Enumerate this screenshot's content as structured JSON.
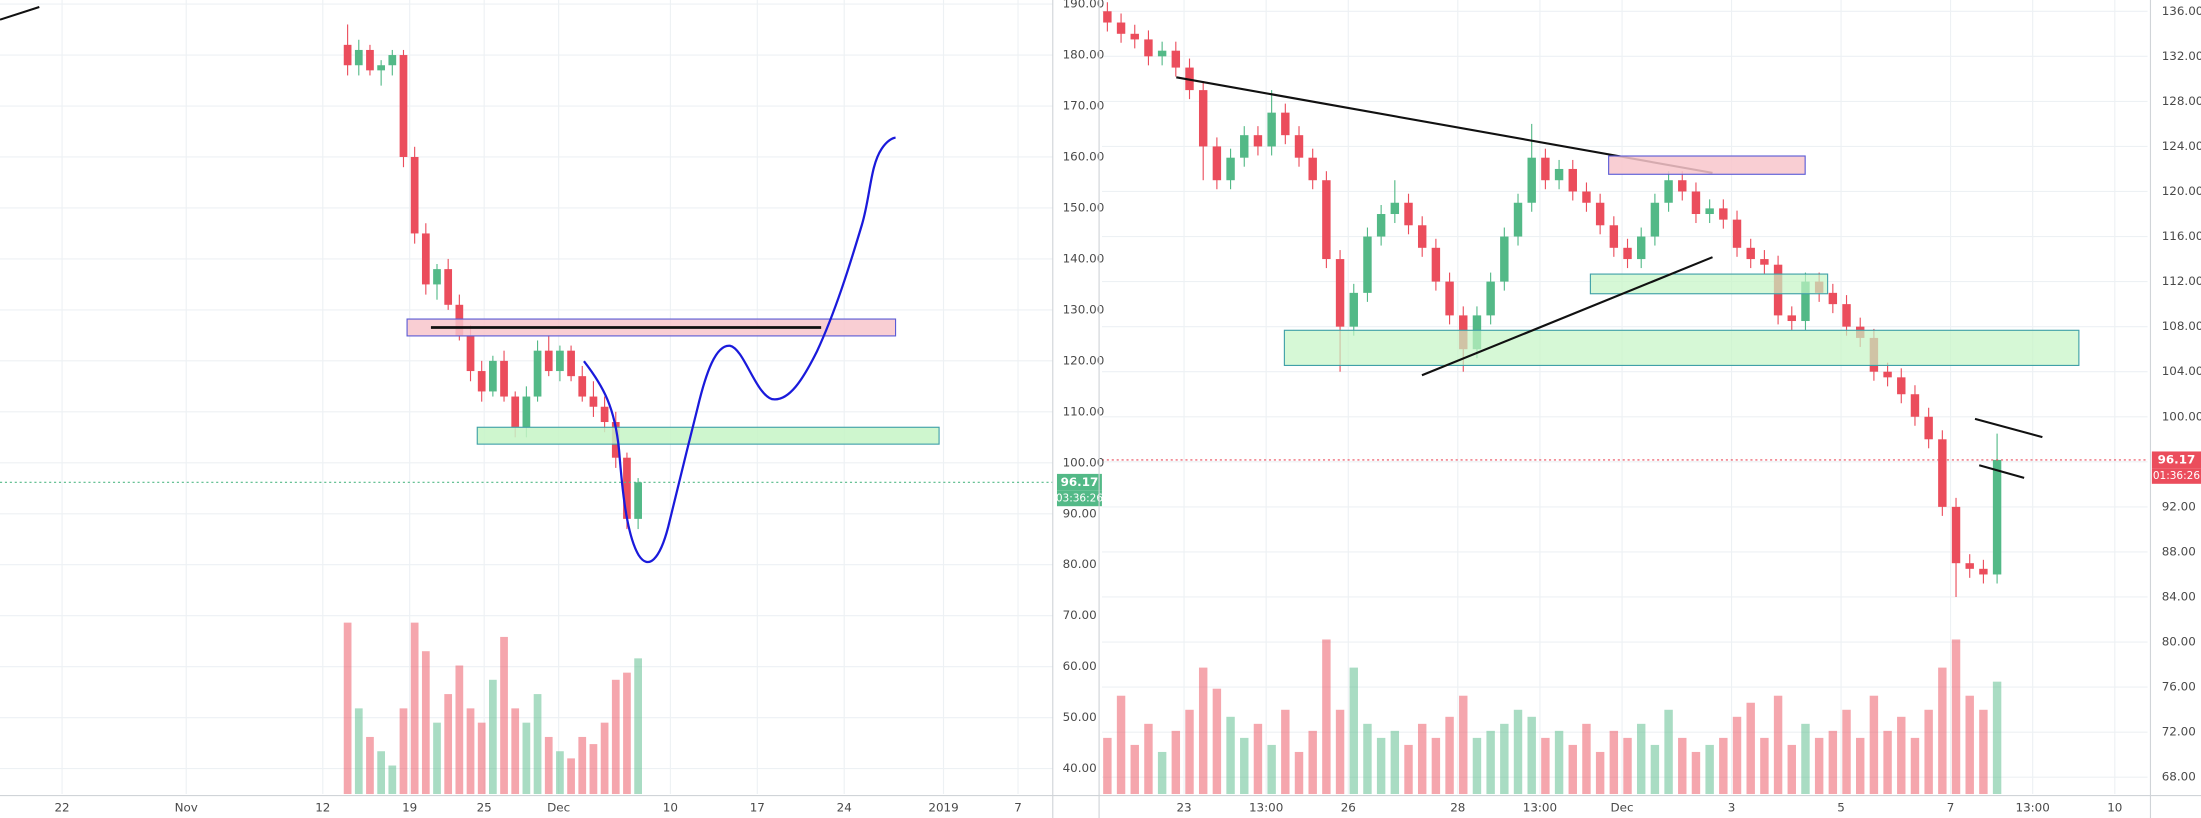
{
  "chart_data": [
    {
      "type": "candlestick",
      "grid": true,
      "up_color": "#53b987",
      "down_color": "#eb4d5c",
      "price_label_color": "#53b987",
      "last_price": 96.17,
      "countdown": "03:36:26",
      "xlim": [
        -5,
        79.8
      ],
      "ylim": [
        35,
        190.8
      ],
      "xticks": [
        {
          "value": 0,
          "label": "22"
        },
        {
          "value": 10,
          "label": "Nov"
        },
        {
          "value": 21,
          "label": "12"
        },
        {
          "value": 28,
          "label": "19"
        },
        {
          "value": 34,
          "label": "25"
        },
        {
          "value": 40,
          "label": "Dec"
        },
        {
          "value": 49,
          "label": "10"
        },
        {
          "value": 56,
          "label": "17"
        },
        {
          "value": 63,
          "label": "24"
        },
        {
          "value": 71,
          "label": "2019"
        },
        {
          "value": 77,
          "label": "7"
        }
      ],
      "yticks": [
        {
          "value": 190,
          "label": "190.00"
        },
        {
          "value": 180,
          "label": "180.00"
        },
        {
          "value": 170,
          "label": "170.00"
        },
        {
          "value": 160,
          "label": "160.00"
        },
        {
          "value": 150,
          "label": "150.00"
        },
        {
          "value": 140,
          "label": "140.00"
        },
        {
          "value": 130,
          "label": "130.00"
        },
        {
          "value": 120,
          "label": "120.00"
        },
        {
          "value": 110,
          "label": "110.00"
        },
        {
          "value": 100,
          "label": "100.00"
        },
        {
          "value": 90,
          "label": "90.00"
        },
        {
          "value": 80,
          "label": "80.00"
        },
        {
          "value": 70,
          "label": "70.00"
        },
        {
          "value": 60,
          "label": "60.00"
        },
        {
          "value": 50,
          "label": "50.00"
        },
        {
          "value": 40,
          "label": "40.00"
        }
      ],
      "x": [
        23,
        23.9,
        24.8,
        25.7,
        26.6,
        27.5,
        28.4,
        29.3,
        30.2,
        31.1,
        32,
        32.9,
        33.8,
        34.7,
        35.6,
        36.5,
        37.4,
        38.3,
        39.2,
        40.1,
        41,
        41.9,
        42.8,
        43.7,
        44.6,
        45.5,
        46.4
      ],
      "open": [
        182,
        178,
        181,
        177,
        178,
        180,
        160,
        145,
        135,
        138,
        131,
        125,
        118,
        114,
        120,
        113,
        107,
        113,
        122,
        118,
        122,
        117,
        113,
        111,
        108,
        101,
        89
      ],
      "high": [
        186,
        183,
        182,
        179,
        181,
        181,
        162,
        147,
        139,
        140,
        133,
        127,
        120,
        121,
        122,
        114,
        115,
        124,
        125,
        123,
        123,
        119,
        116,
        113,
        110,
        102,
        97
      ],
      "low": [
        176,
        176,
        176,
        174,
        176,
        158,
        143,
        133,
        132,
        130,
        124,
        116,
        112,
        113,
        112,
        105,
        105,
        112,
        117,
        116,
        116,
        112,
        109,
        106,
        99,
        87,
        87
      ],
      "close": [
        178,
        181,
        177,
        178,
        180,
        160,
        145,
        135,
        138,
        131,
        125,
        118,
        114,
        120,
        113,
        107,
        113,
        122,
        118,
        122,
        117,
        113,
        111,
        108,
        101,
        89,
        96.17
      ],
      "volume": [
        120,
        60,
        40,
        30,
        20,
        60,
        120,
        100,
        50,
        70,
        90,
        60,
        50,
        80,
        110,
        60,
        50,
        70,
        40,
        30,
        25,
        40,
        35,
        50,
        80,
        85,
        95
      ]
    },
    {
      "type": "candlestick",
      "grid": true,
      "up_color": "#53b987",
      "down_color": "#eb4d5c",
      "price_label_color": "#eb4d5c",
      "last_price": 96.17,
      "countdown": "01:36:26",
      "xlim": [
        -1.5,
        17.6
      ],
      "ylim": [
        66.5,
        137
      ],
      "xticks": [
        {
          "value": 0,
          "label": "23"
        },
        {
          "value": 1.5,
          "label": "13:00"
        },
        {
          "value": 3,
          "label": "26"
        },
        {
          "value": 5,
          "label": "28"
        },
        {
          "value": 6.5,
          "label": "13:00"
        },
        {
          "value": 8,
          "label": "Dec"
        },
        {
          "value": 10,
          "label": "3"
        },
        {
          "value": 12,
          "label": "5"
        },
        {
          "value": 14,
          "label": "7"
        },
        {
          "value": 15.5,
          "label": "13:00"
        },
        {
          "value": 17,
          "label": "10"
        }
      ],
      "yticks": [
        {
          "value": 136,
          "label": "136.00"
        },
        {
          "value": 132,
          "label": "132.00"
        },
        {
          "value": 128,
          "label": "128.00"
        },
        {
          "value": 124,
          "label": "124.00"
        },
        {
          "value": 120,
          "label": "120.00"
        },
        {
          "value": 116,
          "label": "116.00"
        },
        {
          "value": 112,
          "label": "112.00"
        },
        {
          "value": 108,
          "label": "108.00"
        },
        {
          "value": 104,
          "label": "104.00"
        },
        {
          "value": 100,
          "label": "100.00"
        },
        {
          "value": 96,
          "label": "96.00"
        },
        {
          "value": 92,
          "label": "92.00"
        },
        {
          "value": 88,
          "label": "88.00"
        },
        {
          "value": 84,
          "label": "84.00"
        },
        {
          "value": 80,
          "label": "80.00"
        },
        {
          "value": 76,
          "label": "76.00"
        },
        {
          "value": 72,
          "label": "72.00"
        },
        {
          "value": 68,
          "label": "68.00"
        }
      ],
      "x": [
        -1.4,
        -1.15,
        -0.9,
        -0.65,
        -0.4,
        -0.15,
        0.1,
        0.35,
        0.6,
        0.85,
        1.1,
        1.35,
        1.6,
        1.85,
        2.1,
        2.35,
        2.6,
        2.85,
        3.1,
        3.35,
        3.6,
        3.85,
        4.1,
        4.35,
        4.6,
        4.85,
        5.1,
        5.35,
        5.6,
        5.85,
        6.1,
        6.35,
        6.6,
        6.85,
        7.1,
        7.35,
        7.6,
        7.85,
        8.1,
        8.35,
        8.6,
        8.85,
        9.1,
        9.35,
        9.6,
        9.85,
        10.1,
        10.35,
        10.6,
        10.85,
        11.1,
        11.35,
        11.6,
        11.85,
        12.1,
        12.35,
        12.6,
        12.85,
        13.1,
        13.35,
        13.6,
        13.85,
        14.1,
        14.35,
        14.6,
        14.85
      ],
      "open": [
        136,
        135,
        134,
        133.5,
        132,
        132.5,
        131,
        129,
        124,
        121,
        123,
        125,
        124,
        127,
        125,
        123,
        121,
        114,
        108,
        111,
        116,
        118,
        119,
        117,
        115,
        112,
        109,
        106,
        109,
        112,
        116,
        119,
        123,
        121,
        122,
        120,
        119,
        117,
        115,
        114,
        116,
        119,
        121,
        120,
        118,
        118.5,
        117.5,
        115,
        114,
        113.5,
        109,
        108.5,
        112,
        111,
        110,
        108,
        107,
        104,
        103.5,
        102,
        100,
        98,
        92,
        87,
        86.5,
        86
      ],
      "high": [
        136.8,
        135.8,
        134.8,
        134.3,
        133.3,
        133.3,
        131.8,
        129.8,
        124.8,
        123.8,
        125.8,
        125.8,
        129,
        127.8,
        125.8,
        123.8,
        121.8,
        114.8,
        111.8,
        116.8,
        118.8,
        121,
        119.8,
        117.8,
        115.8,
        112.8,
        109.8,
        109.8,
        112.8,
        116.8,
        119.8,
        126,
        123.8,
        122.8,
        122.8,
        120.8,
        119.8,
        117.8,
        115.8,
        116.8,
        119.8,
        121.8,
        121.8,
        120.8,
        119.3,
        119.3,
        118.3,
        115.8,
        114.8,
        114.3,
        109.8,
        112.8,
        112.8,
        111.8,
        110.8,
        108.8,
        107.8,
        104.8,
        104.3,
        102.8,
        100.8,
        98.8,
        92.8,
        87.8,
        87.3,
        98.5
      ],
      "low": [
        134.2,
        133.2,
        132.7,
        131.2,
        131.2,
        130.2,
        128.2,
        121,
        120.2,
        120.2,
        122.2,
        123.2,
        123.2,
        124.2,
        122.2,
        120.2,
        113.2,
        104,
        107.2,
        110.2,
        115.2,
        117.2,
        116.2,
        114.2,
        111.2,
        108.2,
        104,
        105.2,
        108.2,
        111.2,
        115.2,
        118.2,
        120.2,
        120.2,
        119.2,
        118.2,
        116.2,
        114.2,
        113.2,
        113.2,
        115.2,
        118.2,
        119.2,
        117.2,
        117.2,
        116.7,
        114.2,
        113.2,
        112.7,
        108.2,
        107.7,
        107.7,
        110.2,
        109.2,
        107.2,
        106.2,
        103.2,
        102.7,
        101.2,
        99.2,
        97.2,
        91.2,
        84,
        85.7,
        85.2,
        85.2
      ],
      "close": [
        135,
        134,
        133.5,
        132,
        132.5,
        131,
        129,
        124,
        121,
        123,
        125,
        124,
        127,
        125,
        123,
        121,
        114,
        108,
        111,
        116,
        118,
        119,
        117,
        115,
        112,
        109,
        106,
        109,
        112,
        116,
        119,
        123,
        121,
        122,
        120,
        119,
        117,
        115,
        114,
        116,
        119,
        121,
        120,
        118,
        118.5,
        117.5,
        115,
        114,
        113.5,
        109,
        108.5,
        112,
        111,
        110,
        108,
        107,
        104,
        103.5,
        102,
        100,
        98,
        92,
        87,
        86.5,
        86,
        96.17
      ],
      "volume": [
        40,
        70,
        35,
        50,
        30,
        45,
        60,
        90,
        75,
        55,
        40,
        50,
        35,
        60,
        30,
        45,
        110,
        60,
        90,
        50,
        40,
        45,
        35,
        50,
        40,
        55,
        70,
        40,
        45,
        50,
        60,
        55,
        40,
        45,
        35,
        50,
        30,
        45,
        40,
        50,
        35,
        60,
        40,
        30,
        35,
        40,
        55,
        65,
        40,
        70,
        35,
        50,
        40,
        45,
        60,
        40,
        70,
        45,
        55,
        40,
        60,
        90,
        110,
        70,
        60,
        80
      ]
    }
  ]
}
